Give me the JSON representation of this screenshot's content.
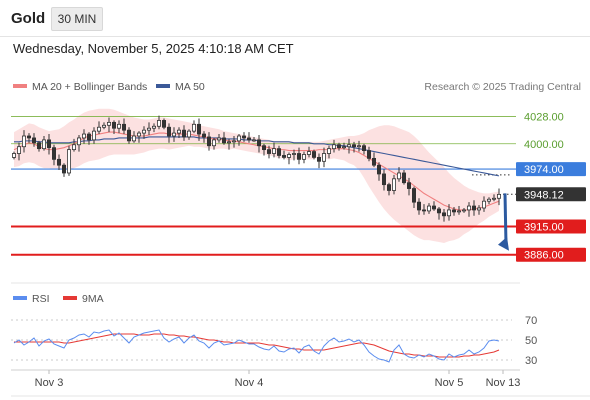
{
  "header": {
    "instrument": "Gold",
    "timeframe": "30 MIN",
    "timestamp": "Wednesday, November 5, 2025 4:10:18 AM CET"
  },
  "legend": {
    "ma20": "MA 20 + Bollinger Bands",
    "ma50": "MA 50",
    "credit": "Research © 2025 Trading Central",
    "rsi": "RSI",
    "rsi_ma": "9MA"
  },
  "colors": {
    "candle": "#333333",
    "ma20": "#f08080",
    "bollinger_fill": "#fbdcdc",
    "ma50": "#3b5998",
    "resistance_green": "#7cb342",
    "pivot_blue": "#3b7ddd",
    "support_red": "#e11d1d",
    "arrow": "#2c5aa0",
    "rsi_line": "#5b8def",
    "rsi_ma": "#e53935"
  },
  "chart_data": [
    {
      "type": "candlestick",
      "ylim": [
        3860,
        4045
      ],
      "x_tick_labels": [
        "Nov 3",
        "Nov 4",
        "Nov 5",
        "Nov 13"
      ],
      "levels": [
        {
          "value": 4028.0,
          "label": "4028.00",
          "style": "green-thin"
        },
        {
          "value": 4000.0,
          "label": "4000.00",
          "style": "green-thin"
        },
        {
          "value": 3974.0,
          "label": "3974.00",
          "style": "pivot-blue"
        },
        {
          "value": 3948.12,
          "label": "3948.12",
          "style": "last-price"
        },
        {
          "value": 3915.0,
          "label": "3915.00",
          "style": "support-red"
        },
        {
          "value": 3886.0,
          "label": "3886.00",
          "style": "support-red"
        }
      ],
      "forecast_arrow": {
        "from": 3948,
        "to": 3886
      },
      "closes": [
        3990,
        3997,
        4008,
        4006,
        4001,
        3995,
        4004,
        3996,
        3984,
        3978,
        3970,
        3994,
        3999,
        4006,
        4010,
        4004,
        4013,
        4017,
        4019,
        4022,
        4016,
        4020,
        4014,
        4003,
        4008,
        4011,
        4014,
        4016,
        4018,
        4024,
        4017,
        4008,
        4011,
        4014,
        4007,
        4013,
        4020,
        4010,
        4007,
        3998,
        4004,
        4006,
        4001,
        4002,
        4003,
        4008,
        4006,
        4004,
        4004,
        3998,
        3994,
        3990,
        3995,
        3988,
        3986,
        3989,
        3990,
        3984,
        3989,
        3992,
        3986,
        3982,
        3990,
        3995,
        3999,
        3996,
        3997,
        3999,
        3997,
        3998,
        3993,
        3985,
        3978,
        3969,
        3958,
        3952,
        3964,
        3970,
        3960,
        3954,
        3940,
        3932,
        3931,
        3936,
        3933,
        3929,
        3926,
        3932,
        3930,
        3931,
        3932,
        3936,
        3932,
        3934,
        3941,
        3943,
        3944,
        3948
      ],
      "ma20": [
        3994,
        3996,
        3999,
        4001,
        4000,
        3997,
        3995,
        3994,
        3994,
        3995,
        3996,
        3998,
        4000,
        4003,
        4006,
        4008,
        4009,
        4010,
        4011,
        4012,
        4012,
        4011,
        4010,
        4009,
        4008,
        4008,
        4008,
        4009,
        4010,
        4011,
        4011,
        4010,
        4010,
        4010,
        4010,
        4010,
        4009,
        4008,
        4007,
        4006,
        4005,
        4005,
        4004,
        4003,
        4003,
        4002,
        4001,
        4000,
        3999,
        3998,
        3997,
        3996,
        3995,
        3994,
        3994,
        3993,
        3993,
        3993,
        3993,
        3993,
        3993,
        3994,
        3994,
        3994,
        3995,
        3995,
        3995,
        3994,
        3993,
        3991,
        3988,
        3985,
        3982,
        3979,
        3976,
        3973,
        3970,
        3967,
        3964,
        3961,
        3957,
        3953,
        3949,
        3946,
        3943,
        3940,
        3937,
        3935,
        3933,
        3932,
        3932,
        3932,
        3933,
        3934,
        3935,
        3937,
        3939,
        3941
      ],
      "bb_upper": [
        4012,
        4015,
        4018,
        4021,
        4020,
        4017,
        4015,
        4013,
        4014,
        4015,
        4018,
        4022,
        4025,
        4029,
        4032,
        4034,
        4035,
        4036,
        4036,
        4036,
        4035,
        4033,
        4031,
        4029,
        4027,
        4026,
        4025,
        4025,
        4026,
        4027,
        4027,
        4026,
        4025,
        4024,
        4023,
        4022,
        4021,
        4019,
        4018,
        4017,
        4016,
        4015,
        4013,
        4012,
        4011,
        4010,
        4009,
        4008,
        4007,
        4006,
        4005,
        4004,
        4003,
        4003,
        4003,
        4003,
        4002,
        4002,
        4002,
        4002,
        4002,
        4002,
        4003,
        4004,
        4005,
        4006,
        4007,
        4008,
        4008,
        4009,
        4011,
        4014,
        4016,
        4018,
        4019,
        4019,
        4018,
        4016,
        4014,
        4012,
        4008,
        4003,
        3997,
        3991,
        3986,
        3981,
        3976,
        3970,
        3965,
        3961,
        3957,
        3954,
        3952,
        3950,
        3949,
        3949,
        3950,
        3951
      ],
      "bb_lower": [
        3976,
        3977,
        3980,
        3981,
        3980,
        3977,
        3975,
        3975,
        3974,
        3975,
        3974,
        3974,
        3975,
        3977,
        3980,
        3982,
        3983,
        3984,
        3986,
        3988,
        3989,
        3989,
        3989,
        3989,
        3989,
        3990,
        3991,
        3993,
        3994,
        3995,
        3995,
        3994,
        3995,
        3996,
        3997,
        3998,
        3997,
        3997,
        3996,
        3995,
        3994,
        3995,
        3995,
        3994,
        3995,
        3994,
        3993,
        3992,
        3991,
        3990,
        3989,
        3988,
        3987,
        3985,
        3985,
        3983,
        3984,
        3984,
        3984,
        3984,
        3984,
        3986,
        3985,
        3984,
        3985,
        3984,
        3983,
        3980,
        3978,
        3973,
        3965,
        3956,
        3948,
        3940,
        3933,
        3927,
        3922,
        3918,
        3914,
        3910,
        3906,
        3903,
        3901,
        3901,
        3900,
        3899,
        3898,
        3900,
        3901,
        3903,
        3907,
        3910,
        3914,
        3918,
        3921,
        3925,
        3928,
        3931
      ],
      "ma50": [
        4002,
        4002,
        4003,
        4003,
        4003,
        4002,
        4002,
        4001,
        4001,
        4001,
        4001,
        4001,
        4002,
        4002,
        4003,
        4003,
        4004,
        4004,
        4005,
        4005,
        4005,
        4006,
        4006,
        4006,
        4006,
        4006,
        4006,
        4007,
        4007,
        4007,
        4007,
        4007,
        4007,
        4007,
        4007,
        4007,
        4007,
        4006,
        4006,
        4006,
        4006,
        4006,
        4005,
        4005,
        4005,
        4005,
        4004,
        4004,
        4004,
        4003,
        4003,
        4003,
        4002,
        4002,
        4002,
        4002,
        4001,
        4001,
        4001,
        4001,
        4000,
        4000,
        4000,
        3999,
        3999,
        3998,
        3998,
        3997,
        3996,
        3995,
        3994,
        3993,
        3992,
        3991,
        3990,
        3989,
        3988,
        3987,
        3986,
        3985,
        3984,
        3983,
        3982,
        3981,
        3980,
        3979,
        3978,
        3977,
        3976,
        3975,
        3974,
        3973,
        3972,
        3971,
        3970,
        3969,
        3968,
        3967
      ]
    },
    {
      "type": "line",
      "title": "RSI",
      "ylim": [
        22,
        78
      ],
      "y_ticks": [
        70,
        50,
        30
      ],
      "series": [
        {
          "name": "RSI",
          "values": [
            47,
            50,
            45,
            48,
            52,
            44,
            49,
            51,
            46,
            44,
            42,
            50,
            52,
            55,
            56,
            53,
            58,
            57,
            59,
            60,
            54,
            57,
            52,
            47,
            53,
            55,
            57,
            58,
            59,
            60,
            52,
            48,
            51,
            53,
            47,
            52,
            55,
            49,
            47,
            42,
            47,
            49,
            45,
            46,
            47,
            50,
            48,
            46,
            46,
            43,
            41,
            40,
            44,
            39,
            38,
            41,
            42,
            37,
            43,
            45,
            39,
            36,
            44,
            49,
            52,
            48,
            49,
            51,
            48,
            50,
            45,
            38,
            34,
            31,
            30,
            28,
            40,
            45,
            36,
            33,
            32,
            35,
            33,
            36,
            34,
            31,
            30,
            36,
            33,
            35,
            36,
            40,
            36,
            38,
            42,
            49,
            50,
            49
          ]
        },
        {
          "name": "9MA",
          "values": [
            48,
            48,
            48,
            48,
            48,
            48,
            48,
            48,
            48,
            48,
            47,
            47,
            48,
            49,
            50,
            51,
            52,
            53,
            54,
            55,
            56,
            56,
            56,
            56,
            56,
            55,
            55,
            55,
            56,
            56,
            56,
            55,
            55,
            54,
            54,
            53,
            53,
            52,
            51,
            50,
            50,
            49,
            48,
            48,
            47,
            47,
            47,
            47,
            47,
            47,
            46,
            45,
            45,
            44,
            43,
            42,
            41,
            41,
            40,
            40,
            40,
            40,
            40,
            41,
            42,
            43,
            44,
            45,
            46,
            47,
            47,
            46,
            45,
            43,
            41,
            39,
            38,
            37,
            36,
            36,
            35,
            35,
            34,
            34,
            34,
            33,
            33,
            33,
            33,
            33,
            34,
            34,
            35,
            35,
            36,
            37,
            38,
            40
          ]
        }
      ]
    }
  ]
}
